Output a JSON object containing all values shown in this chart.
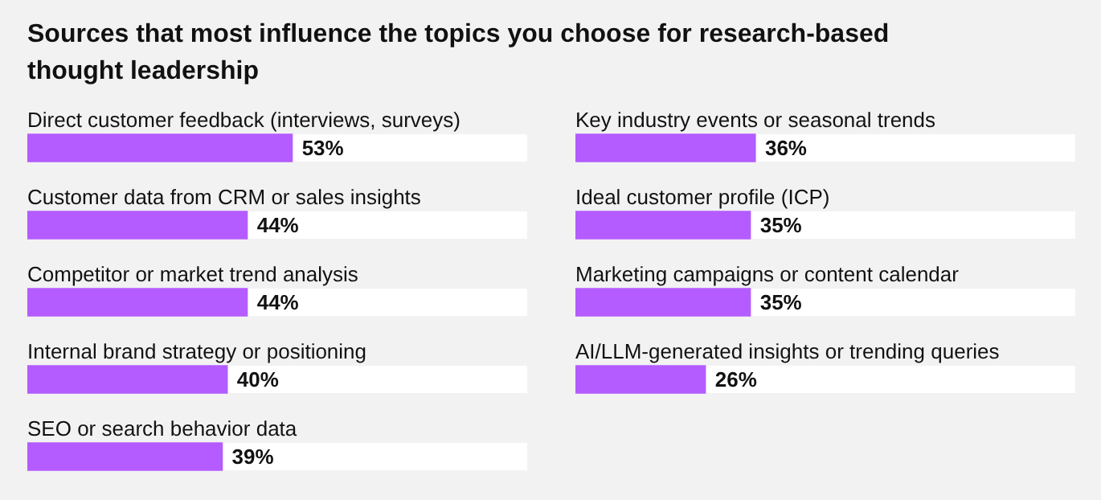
{
  "chart_data": [
    {
      "type": "bar",
      "orientation": "horizontal",
      "title": "Sources that most influence the topics you choose for research-based thought leadership",
      "categories": [
        "Direct customer feedback (interviews, surveys)",
        "Customer data from CRM or sales insights",
        "Competitor or market trend analysis",
        "Internal brand strategy or positioning",
        "SEO or search behavior data"
      ],
      "values": [
        53,
        44,
        44,
        40,
        39
      ],
      "value_labels": [
        "53%",
        "44%",
        "44%",
        "40%",
        "39%"
      ],
      "color": "#b45cff",
      "xlim": [
        0,
        100
      ],
      "tick_labels": "y"
    },
    {
      "type": "bar",
      "orientation": "horizontal",
      "categories": [
        "Key industry events or seasonal trends",
        "Ideal customer profile (ICP)",
        "Marketing campaigns or content calendar",
        "AI/LLM-generated insights or trending queries"
      ],
      "values": [
        36,
        35,
        35,
        26
      ],
      "value_labels": [
        "36%",
        "35%",
        "35%",
        "26%"
      ],
      "color": "#b45cff",
      "xlim": [
        0,
        100
      ],
      "tick_labels": "y"
    }
  ]
}
